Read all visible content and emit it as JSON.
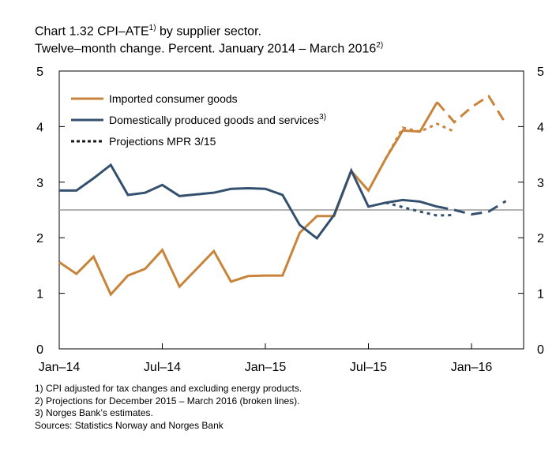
{
  "chart_data": {
    "type": "line",
    "title": "Chart 1.32 CPI–ATE",
    "title_sup": "1)",
    "title_suffix": " by supplier sector.",
    "subtitle": "Twelve–month change. Percent. January 2014 – March 2016",
    "subtitle_sup": "2)",
    "ylim": [
      0,
      5
    ],
    "yticks": [
      "0",
      "1",
      "2",
      "3",
      "4",
      "5"
    ],
    "xticks": [
      "Jan–14",
      "Jul–14",
      "Jan–15",
      "Jul–15",
      "Jan–16"
    ],
    "x": [
      "2014-01",
      "2014-02",
      "2014-03",
      "2014-04",
      "2014-05",
      "2014-06",
      "2014-07",
      "2014-08",
      "2014-09",
      "2014-10",
      "2014-11",
      "2014-12",
      "2015-01",
      "2015-02",
      "2015-03",
      "2015-04",
      "2015-05",
      "2015-06",
      "2015-07",
      "2015-08",
      "2015-09",
      "2015-10",
      "2015-11",
      "2015-12",
      "2016-01",
      "2016-02",
      "2016-03"
    ],
    "reference_line": 2.5,
    "legend_placement": "top-left",
    "series": [
      {
        "name": "Imported consumer goods",
        "color": "#c8843a",
        "values": [
          1.56,
          1.35,
          1.66,
          0.98,
          1.32,
          1.44,
          1.78,
          1.12,
          1.44,
          1.76,
          1.21,
          1.31,
          1.32,
          1.32,
          2.09,
          2.39,
          2.39,
          3.2,
          2.85,
          3.42,
          3.93,
          3.91,
          4.44,
          4.08,
          4.35,
          4.55,
          4.05
        ],
        "projection_from": "2015-12"
      },
      {
        "name": "Domestically produced goods and services",
        "name_sup": "3)",
        "color": "#34506f",
        "values": [
          2.85,
          2.85,
          3.07,
          3.31,
          2.77,
          2.81,
          2.95,
          2.75,
          2.78,
          2.81,
          2.88,
          2.89,
          2.88,
          2.77,
          2.23,
          1.99,
          2.41,
          3.21,
          2.56,
          2.63,
          2.68,
          2.65,
          2.56,
          2.5,
          2.42,
          2.47,
          2.66
        ],
        "projection_from": "2015-12"
      },
      {
        "name": "Projections MPR 3/15",
        "color": "#1a1a1a",
        "style": "dotted",
        "imported": {
          "x": [
            "2015-08",
            "2015-09",
            "2015-10",
            "2015-11",
            "2015-12"
          ],
          "values": [
            3.42,
            3.98,
            3.91,
            4.05,
            3.91
          ]
        },
        "domestic": {
          "x": [
            "2015-08",
            "2015-09",
            "2015-10",
            "2015-11",
            "2015-12"
          ],
          "values": [
            2.63,
            2.55,
            2.47,
            2.4,
            2.41
          ]
        }
      }
    ]
  },
  "notes": [
    "1) CPI adjusted for tax changes and excluding energy products.",
    "2) Projections for December 2015 – March 2016 (broken lines).",
    "3) Norges Bank’s estimates.",
    "Sources: Statistics Norway and Norges Bank"
  ]
}
